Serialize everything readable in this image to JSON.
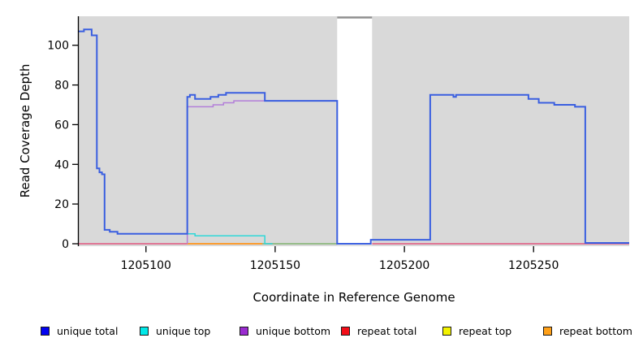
{
  "axes": {
    "y_title": "Read Coverage Depth",
    "x_title": "Coordinate in Reference Genome"
  },
  "legend": [
    {
      "label": "unique total",
      "color": "#0202f0"
    },
    {
      "label": "unique top",
      "color": "#00e8e8"
    },
    {
      "label": "unique bottom",
      "color": "#9a2bd0"
    },
    {
      "label": "repeat total",
      "color": "#f20d18"
    },
    {
      "label": "repeat top",
      "color": "#f2f200"
    },
    {
      "label": "repeat bottom",
      "color": "#ffa018"
    }
  ],
  "chart_data": {
    "type": "line",
    "subtype": "step-coverage",
    "title": "",
    "xlabel": "Coordinate in Reference Genome",
    "ylabel": "Read Coverage Depth",
    "xlim": [
      1205074,
      1205287
    ],
    "ylim": [
      0,
      115
    ],
    "x_ticks": [
      1205100,
      1205150,
      1205200,
      1205250
    ],
    "y_ticks": [
      0,
      20,
      40,
      60,
      80,
      100
    ],
    "grid": false,
    "panel_bg": "#d9d9d9",
    "legend_position": "bottom",
    "gap_band": {
      "x0": 1205174,
      "x1": 1205187.5,
      "fill": "#ffffff",
      "cap_color": "#8f8f8f",
      "note": "white band over panel with short gray cap line at top"
    },
    "series": [
      {
        "name": "repeat total",
        "plot_color": "#e1557f",
        "width": 1.6,
        "layer": 0,
        "points": [
          [
            1205074,
            0
          ],
          [
            1205287,
            0
          ]
        ]
      },
      {
        "name": "repeat bottom",
        "plot_color": "#ff9d1e",
        "width": 1.8,
        "layer": 0,
        "points": [
          [
            1205116,
            0
          ],
          [
            1205145,
            0
          ]
        ]
      },
      {
        "name": "zero coverage segment",
        "plot_color": "#7ec87e",
        "width": 1.5,
        "layer": 0,
        "points": [
          [
            1205145,
            0
          ],
          [
            1205174,
            0
          ]
        ]
      },
      {
        "name": "unique bottom",
        "plot_color": "#b37fd9",
        "width": 1.5,
        "layer": 1,
        "points": [
          [
            1205116,
            0
          ],
          [
            1205116,
            69
          ],
          [
            1205126,
            70
          ],
          [
            1205130,
            71
          ],
          [
            1205134,
            72
          ],
          [
            1205174,
            0
          ],
          [
            1205187,
            0
          ]
        ]
      },
      {
        "name": "unique top",
        "plot_color": "#2fd8d8",
        "width": 1.5,
        "layer": 1,
        "points": [
          [
            1205116,
            5
          ],
          [
            1205119,
            4
          ],
          [
            1205146,
            0
          ],
          [
            1205149,
            0
          ]
        ]
      },
      {
        "name": "unique total",
        "plot_color": "#3a5fe0",
        "width": 2,
        "layer": 1,
        "points": [
          [
            1205074,
            107
          ],
          [
            1205076,
            108
          ],
          [
            1205079,
            105
          ],
          [
            1205081,
            38
          ],
          [
            1205082,
            36
          ],
          [
            1205083,
            35
          ],
          [
            1205084,
            7
          ],
          [
            1205086,
            6
          ],
          [
            1205089,
            5
          ],
          [
            1205116,
            74
          ],
          [
            1205117,
            75
          ],
          [
            1205119,
            73
          ],
          [
            1205125,
            74
          ],
          [
            1205128,
            75
          ],
          [
            1205131,
            76
          ],
          [
            1205146,
            72
          ],
          [
            1205174,
            0
          ],
          [
            1205187,
            2
          ],
          [
            1205210,
            75
          ],
          [
            1205219,
            74
          ],
          [
            1205220,
            75
          ],
          [
            1205248,
            73
          ],
          [
            1205252,
            71
          ],
          [
            1205258,
            70
          ],
          [
            1205266,
            69
          ],
          [
            1205270,
            0.4
          ],
          [
            1205287,
            0.4
          ]
        ]
      }
    ]
  }
}
